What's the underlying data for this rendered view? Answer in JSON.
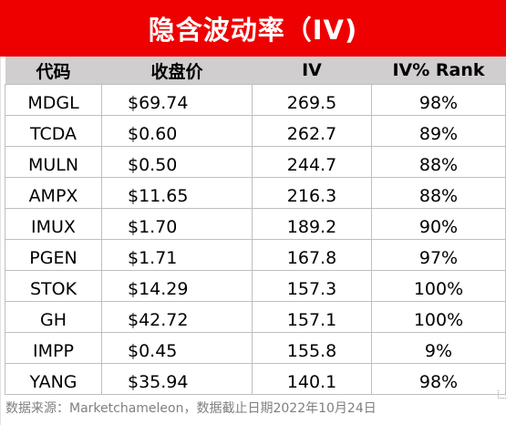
{
  "title": "隐含波动率（IV)",
  "columns": [
    "代码",
    "收盘价",
    "IV",
    "IV% Rank"
  ],
  "rows": [
    {
      "ticker": "MDGL",
      "close": "$69.74",
      "iv": "269.5",
      "rank": "98%"
    },
    {
      "ticker": "TCDA",
      "close": "$0.60",
      "iv": "262.7",
      "rank": "89%"
    },
    {
      "ticker": "MULN",
      "close": "$0.50",
      "iv": "244.7",
      "rank": "88%"
    },
    {
      "ticker": "AMPX",
      "close": "$11.65",
      "iv": "216.3",
      "rank": "88%"
    },
    {
      "ticker": "IMUX",
      "close": "$1.70",
      "iv": "189.2",
      "rank": "90%"
    },
    {
      "ticker": "PGEN",
      "close": "$1.71",
      "iv": "167.8",
      "rank": "97%"
    },
    {
      "ticker": "STOK",
      "close": "$14.29",
      "iv": "157.3",
      "rank": "100%"
    },
    {
      "ticker": "GH",
      "close": "$42.72",
      "iv": "157.1",
      "rank": "100%"
    },
    {
      "ticker": "IMPP",
      "close": "$0.45",
      "iv": "155.8",
      "rank": "9%"
    },
    {
      "ticker": "YANG",
      "close": "$35.94",
      "iv": "140.1",
      "rank": "98%"
    }
  ],
  "footer": "数据来源：Marketchameleon，数据截止日期2022年10月24日",
  "colors": {
    "title_bg": "#ee0000",
    "header_bg": "#d0cece",
    "footer_text": "#7f7f7f"
  }
}
